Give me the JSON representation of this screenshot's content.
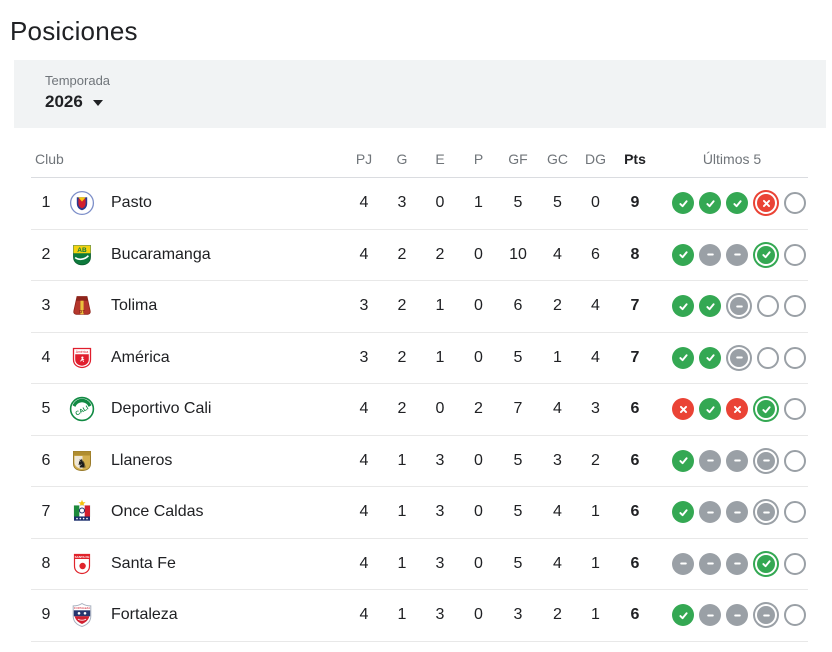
{
  "page": {
    "title": "Posiciones"
  },
  "filter": {
    "label": "Temporada",
    "value": "2026"
  },
  "colors": {
    "win": "#34A853",
    "draw": "#9AA0A6",
    "loss": "#EA4335",
    "pending": "#9AA0A6",
    "season_bar_bg": "#F1F3F4"
  },
  "table": {
    "headers": {
      "club": "Club",
      "pj": "PJ",
      "g": "G",
      "e": "E",
      "p": "P",
      "gf": "GF",
      "gc": "GC",
      "dg": "DG",
      "pts": "Pts",
      "last5": "Últimos 5"
    },
    "rows": [
      {
        "pos": "1",
        "club": "Pasto",
        "pj": "4",
        "g": "3",
        "e": "0",
        "p": "1",
        "gf": "5",
        "gc": "5",
        "dg": "0",
        "pts": "9",
        "last5": [
          "win",
          "win",
          "win",
          "loss-current",
          "none"
        ]
      },
      {
        "pos": "2",
        "club": "Bucaramanga",
        "pj": "4",
        "g": "2",
        "e": "2",
        "p": "0",
        "gf": "10",
        "gc": "4",
        "dg": "6",
        "pts": "8",
        "last5": [
          "win",
          "draw",
          "draw",
          "win-current",
          "none"
        ]
      },
      {
        "pos": "3",
        "club": "Tolima",
        "pj": "3",
        "g": "2",
        "e": "1",
        "p": "0",
        "gf": "6",
        "gc": "2",
        "dg": "4",
        "pts": "7",
        "last5": [
          "win",
          "win",
          "draw-current",
          "none",
          "none"
        ]
      },
      {
        "pos": "4",
        "club": "América",
        "pj": "3",
        "g": "2",
        "e": "1",
        "p": "0",
        "gf": "5",
        "gc": "1",
        "dg": "4",
        "pts": "7",
        "last5": [
          "win",
          "win",
          "draw-current",
          "none",
          "none"
        ]
      },
      {
        "pos": "5",
        "club": "Deportivo Cali",
        "pj": "4",
        "g": "2",
        "e": "0",
        "p": "2",
        "gf": "7",
        "gc": "4",
        "dg": "3",
        "pts": "6",
        "last5": [
          "loss",
          "win",
          "loss",
          "win-current",
          "none"
        ]
      },
      {
        "pos": "6",
        "club": "Llaneros",
        "pj": "4",
        "g": "1",
        "e": "3",
        "p": "0",
        "gf": "5",
        "gc": "3",
        "dg": "2",
        "pts": "6",
        "last5": [
          "win",
          "draw",
          "draw",
          "draw-current",
          "none"
        ]
      },
      {
        "pos": "7",
        "club": "Once Caldas",
        "pj": "4",
        "g": "1",
        "e": "3",
        "p": "0",
        "gf": "5",
        "gc": "4",
        "dg": "1",
        "pts": "6",
        "last5": [
          "win",
          "draw",
          "draw",
          "draw-current",
          "none"
        ]
      },
      {
        "pos": "8",
        "club": "Santa Fe",
        "pj": "4",
        "g": "1",
        "e": "3",
        "p": "0",
        "gf": "5",
        "gc": "4",
        "dg": "1",
        "pts": "6",
        "last5": [
          "draw",
          "draw",
          "draw",
          "win-current",
          "none"
        ]
      },
      {
        "pos": "9",
        "club": "Fortaleza",
        "pj": "4",
        "g": "1",
        "e": "3",
        "p": "0",
        "gf": "3",
        "gc": "2",
        "dg": "1",
        "pts": "6",
        "last5": [
          "win",
          "draw",
          "draw",
          "draw-current",
          "none"
        ]
      }
    ]
  }
}
